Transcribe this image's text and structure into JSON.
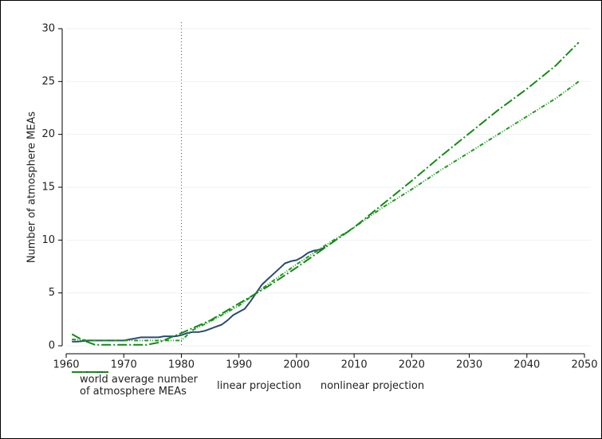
{
  "chart_data": {
    "type": "line",
    "ylabel": "Number of atmosphere MEAs",
    "xlim": [
      1960,
      2050
    ],
    "xticks": [
      1960,
      1970,
      1980,
      1990,
      2000,
      2010,
      2020,
      2030,
      2040,
      2050
    ],
    "ylim": [
      0,
      30
    ],
    "yticks": [
      0,
      5,
      10,
      15,
      20,
      25,
      30
    ],
    "grid": true,
    "legend": "bottom",
    "reference_lines": [
      1980
    ],
    "series": [
      {
        "name": "world average number\nof atmosphere MEAs",
        "color": "#2b4a73",
        "dash": "none",
        "x": [
          1961,
          1962,
          1963,
          1964,
          1965,
          1966,
          1967,
          1968,
          1969,
          1970,
          1971,
          1972,
          1973,
          1974,
          1975,
          1976,
          1977,
          1978,
          1979,
          1980,
          1981,
          1982,
          1983,
          1984,
          1985,
          1986,
          1987,
          1988,
          1989,
          1990,
          1991,
          1992,
          1993,
          1994,
          1995,
          1996,
          1997,
          1998,
          1999,
          2000,
          2001,
          2002,
          2003,
          2004,
          2005
        ],
        "values": [
          0.4,
          0.4,
          0.45,
          0.5,
          0.5,
          0.5,
          0.5,
          0.5,
          0.5,
          0.5,
          0.6,
          0.7,
          0.8,
          0.8,
          0.8,
          0.8,
          0.9,
          0.9,
          0.9,
          1.0,
          1.2,
          1.3,
          1.3,
          1.4,
          1.6,
          1.8,
          2.0,
          2.4,
          2.9,
          3.2,
          3.5,
          4.2,
          5.0,
          5.8,
          6.3,
          6.8,
          7.3,
          7.8,
          8.0,
          8.1,
          8.4,
          8.8,
          9.0,
          9.1,
          9.3
        ]
      },
      {
        "name": "linear projection",
        "color": "#1f9a1f",
        "dash": "5,2,1,2,1,2",
        "x": [
          1961,
          1965,
          1970,
          1975,
          1979,
          1980,
          1982,
          1985,
          1990,
          1995,
          2000,
          2005,
          2010,
          2015,
          2020,
          2025,
          2030,
          2035,
          2040,
          2045,
          2049
        ],
        "values": [
          0.6,
          0.5,
          0.5,
          0.5,
          0.5,
          0.5,
          1.5,
          2.3,
          3.8,
          5.8,
          7.7,
          9.5,
          11.2,
          13.1,
          14.8,
          16.6,
          18.3,
          20.0,
          21.7,
          23.4,
          25.0
        ]
      },
      {
        "name": "nonlinear projection",
        "color": "#158a15",
        "dash": "12,3,2,3",
        "x": [
          1961,
          1963,
          1965,
          1970,
          1974,
          1976,
          1980,
          1985,
          1990,
          1995,
          2000,
          2005,
          2010,
          2015,
          2020,
          2025,
          2030,
          2035,
          2040,
          2045,
          2049
        ],
        "values": [
          1.1,
          0.5,
          0.1,
          0.1,
          0.1,
          0.3,
          1.2,
          2.4,
          4.0,
          5.6,
          7.4,
          9.3,
          11.2,
          13.4,
          15.6,
          17.9,
          20.1,
          22.3,
          24.3,
          26.5,
          28.7
        ]
      }
    ]
  }
}
